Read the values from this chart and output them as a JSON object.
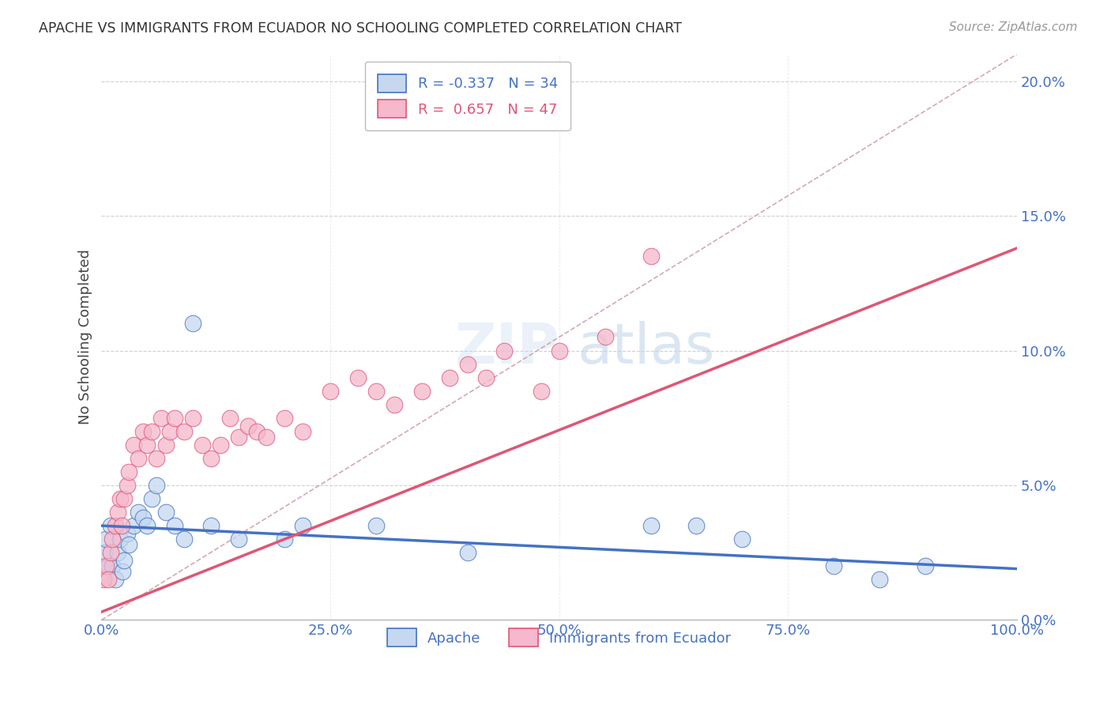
{
  "title": "APACHE VS IMMIGRANTS FROM ECUADOR NO SCHOOLING COMPLETED CORRELATION CHART",
  "source": "Source: ZipAtlas.com",
  "ylabel": "No Schooling Completed",
  "xlim": [
    0,
    100
  ],
  "ylim": [
    0,
    21
  ],
  "xticks": [
    0,
    25,
    50,
    75,
    100
  ],
  "yticks": [
    0,
    5,
    10,
    15,
    20
  ],
  "xtick_labels": [
    "0.0%",
    "25.0%",
    "50.0%",
    "75.0%",
    "100.0%"
  ],
  "ytick_labels": [
    "0.0%",
    "5.0%",
    "10.0%",
    "15.0%",
    "20.0%"
  ],
  "background_color": "#ffffff",
  "grid_color": "#d0d0d0",
  "apache_color": "#c5d8f0",
  "ecuador_color": "#f5b8cc",
  "apache_line_color": "#4472c4",
  "ecuador_line_color": "#e05575",
  "ref_line_color": "#d0a0a8",
  "legend_R_apache": "-0.337",
  "legend_N_apache": "34",
  "legend_R_ecuador": "0.657",
  "legend_N_ecuador": "47",
  "apache_intercept": 3.5,
  "apache_slope": -0.016,
  "ecuador_intercept": 0.3,
  "ecuador_slope": 0.135,
  "ref_line_x": [
    0,
    100
  ],
  "ref_line_y": [
    0,
    21
  ],
  "apache_points_x": [
    0.3,
    0.5,
    0.7,
    1.0,
    1.2,
    1.5,
    1.8,
    2.0,
    2.3,
    2.5,
    2.8,
    3.0,
    3.5,
    4.0,
    4.5,
    5.0,
    5.5,
    6.0,
    7.0,
    8.0,
    9.0,
    10.0,
    12.0,
    15.0,
    20.0,
    22.0,
    30.0,
    40.0,
    60.0,
    65.0,
    70.0,
    80.0,
    85.0,
    90.0
  ],
  "apache_points_y": [
    2.5,
    3.0,
    2.0,
    3.5,
    2.0,
    1.5,
    2.5,
    3.0,
    1.8,
    2.2,
    3.2,
    2.8,
    3.5,
    4.0,
    3.8,
    3.5,
    4.5,
    5.0,
    4.0,
    3.5,
    3.0,
    11.0,
    3.5,
    3.0,
    3.0,
    3.5,
    3.5,
    2.5,
    3.5,
    3.5,
    3.0,
    2.0,
    1.5,
    2.0
  ],
  "ecuador_points_x": [
    0.2,
    0.5,
    0.7,
    1.0,
    1.2,
    1.5,
    1.8,
    2.0,
    2.2,
    2.5,
    2.8,
    3.0,
    3.5,
    4.0,
    4.5,
    5.0,
    5.5,
    6.0,
    6.5,
    7.0,
    7.5,
    8.0,
    9.0,
    10.0,
    11.0,
    12.0,
    13.0,
    14.0,
    15.0,
    16.0,
    17.0,
    18.0,
    20.0,
    22.0,
    25.0,
    28.0,
    30.0,
    32.0,
    35.0,
    38.0,
    40.0,
    42.0,
    44.0,
    48.0,
    50.0,
    55.0,
    60.0
  ],
  "ecuador_points_y": [
    1.5,
    2.0,
    1.5,
    2.5,
    3.0,
    3.5,
    4.0,
    4.5,
    3.5,
    4.5,
    5.0,
    5.5,
    6.5,
    6.0,
    7.0,
    6.5,
    7.0,
    6.0,
    7.5,
    6.5,
    7.0,
    7.5,
    7.0,
    7.5,
    6.5,
    6.0,
    6.5,
    7.5,
    6.8,
    7.2,
    7.0,
    6.8,
    7.5,
    7.0,
    8.5,
    9.0,
    8.5,
    8.0,
    8.5,
    9.0,
    9.5,
    9.0,
    10.0,
    8.5,
    10.0,
    10.5,
    13.5
  ]
}
